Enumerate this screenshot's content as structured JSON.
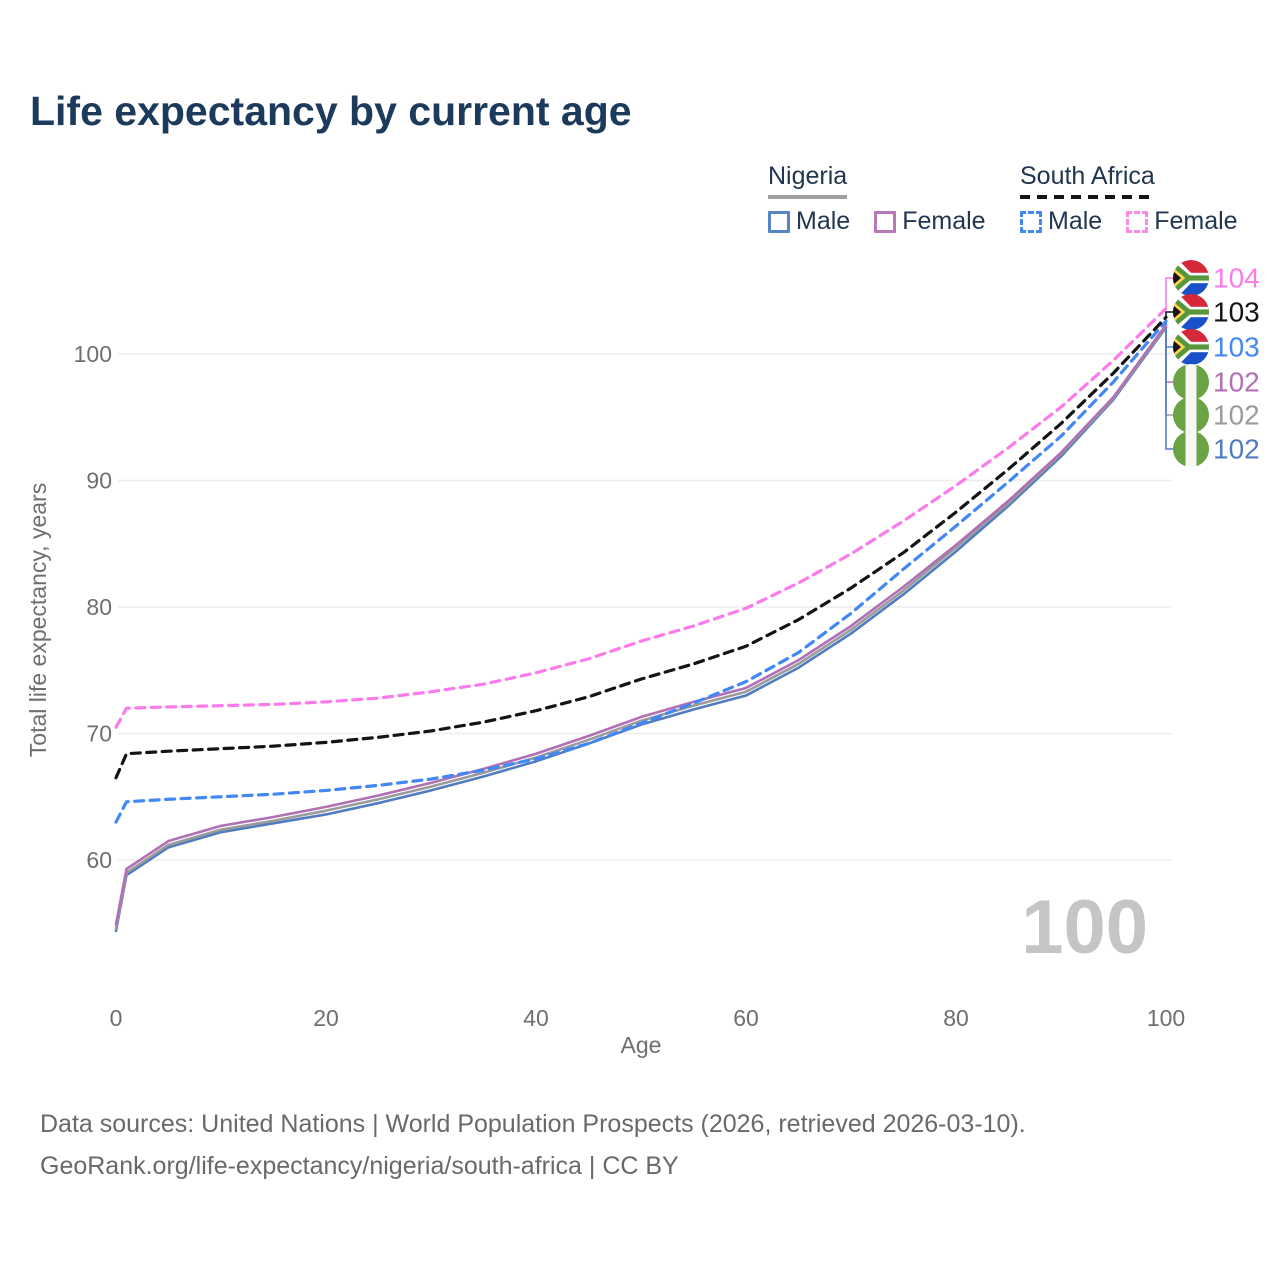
{
  "title": "Life expectancy by current age",
  "legend": {
    "groups": [
      {
        "name": "Nigeria",
        "underline_style": "solid",
        "underline_color": "#a0a0a0",
        "items": [
          {
            "label": "Male",
            "color": "#4f7dc0",
            "dashed": false
          },
          {
            "label": "Female",
            "color": "#b16fb4",
            "dashed": false
          }
        ]
      },
      {
        "name": "South Africa",
        "underline_style": "dashed",
        "underline_color": "#141414",
        "items": [
          {
            "label": "Male",
            "color": "#4187f5",
            "dashed": true
          },
          {
            "label": "Female",
            "color": "#fb7bea",
            "dashed": true
          }
        ]
      }
    ]
  },
  "chart_data": {
    "type": "line",
    "title": "Life expectancy by current age",
    "xlabel": "Age",
    "ylabel": "Total life expectancy, years",
    "x_ticks": [
      0,
      20,
      40,
      60,
      80,
      100
    ],
    "y_ticks": [
      60,
      70,
      80,
      90,
      100
    ],
    "xlim": [
      0,
      100
    ],
    "ylim": [
      54,
      106
    ],
    "grid": "horizontal",
    "legend_position": "top-right",
    "x": [
      0,
      1,
      5,
      10,
      15,
      20,
      25,
      30,
      35,
      40,
      45,
      50,
      55,
      60,
      65,
      70,
      75,
      80,
      85,
      90,
      95,
      100
    ],
    "series": [
      {
        "id": "south-africa-female",
        "name": "South Africa Female",
        "country": "South Africa",
        "sex": "Female",
        "color": "#fb7bea",
        "dashed": true,
        "flag": "south-africa",
        "end_label": "104",
        "values": [
          70.5,
          72.0,
          72.1,
          72.2,
          72.3,
          72.5,
          72.8,
          73.3,
          73.9,
          74.8,
          75.9,
          77.3,
          78.5,
          79.9,
          81.9,
          84.2,
          86.8,
          89.6,
          92.6,
          95.8,
          99.5,
          103.6
        ]
      },
      {
        "id": "south-africa-total",
        "name": "South Africa Total",
        "country": "South Africa",
        "sex": "Both",
        "color": "#141414",
        "dashed": true,
        "flag": "south-africa",
        "end_label": "103",
        "values": [
          66.5,
          68.4,
          68.6,
          68.8,
          69.0,
          69.3,
          69.7,
          70.2,
          70.9,
          71.8,
          72.9,
          74.3,
          75.5,
          76.9,
          79.0,
          81.5,
          84.3,
          87.5,
          90.9,
          94.5,
          98.5,
          102.9
        ]
      },
      {
        "id": "south-africa-male",
        "name": "South Africa Male",
        "country": "South Africa",
        "sex": "Male",
        "color": "#4187f5",
        "dashed": true,
        "flag": "south-africa",
        "end_label": "103",
        "values": [
          63.0,
          64.6,
          64.8,
          65.0,
          65.2,
          65.5,
          65.9,
          66.4,
          67.1,
          68.0,
          69.2,
          70.8,
          72.4,
          74.1,
          76.4,
          79.5,
          83.0,
          86.4,
          89.9,
          93.5,
          97.8,
          102.6
        ]
      },
      {
        "id": "nigeria-female",
        "name": "Nigeria Female",
        "country": "Nigeria",
        "sex": "Female",
        "color": "#b16fb4",
        "dashed": false,
        "flag": "nigeria",
        "end_label": "102",
        "values": [
          54.9,
          59.3,
          61.5,
          62.7,
          63.4,
          64.2,
          65.1,
          66.1,
          67.2,
          68.4,
          69.8,
          71.3,
          72.5,
          73.6,
          75.8,
          78.5,
          81.6,
          84.9,
          88.4,
          92.2,
          96.6,
          102.3
        ]
      },
      {
        "id": "nigeria-total",
        "name": "Nigeria Total",
        "country": "Nigeria",
        "sex": "Both",
        "color": "#9b9b9b",
        "dashed": false,
        "flag": "nigeria",
        "end_label": "102",
        "values": [
          54.6,
          59.0,
          61.2,
          62.4,
          63.1,
          63.9,
          64.8,
          65.8,
          66.9,
          68.1,
          69.5,
          71.0,
          72.2,
          73.3,
          75.5,
          78.2,
          81.3,
          84.7,
          88.2,
          92.1,
          96.5,
          102.2
        ]
      },
      {
        "id": "nigeria-male",
        "name": "Nigeria Male",
        "country": "Nigeria",
        "sex": "Male",
        "color": "#4f7dc0",
        "dashed": false,
        "flag": "nigeria",
        "end_label": "102",
        "values": [
          54.4,
          58.8,
          61.0,
          62.2,
          62.9,
          63.6,
          64.5,
          65.5,
          66.6,
          67.8,
          69.2,
          70.7,
          71.9,
          73.0,
          75.2,
          77.9,
          81.0,
          84.4,
          88.0,
          91.9,
          96.4,
          102.1
        ]
      }
    ]
  },
  "watermark": "100",
  "footer": {
    "line1": "Data sources: United Nations | World Population Prospects (2026, retrieved 2026-03-10).",
    "line2": "GeoRank.org/life-expectancy/nigeria/south-africa | CC BY"
  },
  "colors": {
    "title_text": "#1b3a5c",
    "axis_text": "#6f6f6f",
    "gridline": "#ededed",
    "watermark": "#c5c5c5",
    "footer_text": "#696969"
  }
}
